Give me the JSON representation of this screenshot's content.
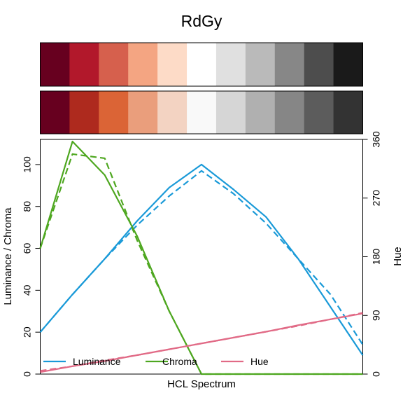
{
  "chart_data": {
    "type": "line",
    "title": "RdGy",
    "xlabel": "HCL Spectrum",
    "ylabel_left": "Luminance / Chroma",
    "ylabel_right": "Hue",
    "ylim_left": [
      0,
      112
    ],
    "ylim_right": [
      0,
      360
    ],
    "yticks_left": [
      "0",
      "20",
      "40",
      "60",
      "80",
      "100"
    ],
    "yticks_right": [
      "0",
      "90",
      "180",
      "270",
      "360"
    ],
    "x": [
      1,
      2,
      3,
      4,
      5,
      6,
      7,
      8,
      9,
      10,
      11
    ],
    "palette_top": [
      "#67001F",
      "#B2182B",
      "#D6604D",
      "#F4A582",
      "#FDDBC7",
      "#FFFFFF",
      "#E0E0E0",
      "#BABABA",
      "#878787",
      "#4D4D4D",
      "#1A1A1A"
    ],
    "palette_bottom": [
      "#67001F",
      "#AE2A1E",
      "#DB6436",
      "#EA9E7C",
      "#F3D3C2",
      "#F9F9F9",
      "#D6D6D6",
      "#B0B0B0",
      "#868686",
      "#5C5C5C",
      "#333333"
    ],
    "colors": {
      "luminance": "#1A9AD8",
      "chroma": "#4EA720",
      "hue": "#E16A86"
    },
    "legend": {
      "placement": "bottom",
      "items": [
        "Luminance",
        "Chroma",
        "Hue"
      ]
    },
    "series": [
      {
        "name": "Luminance",
        "axis": "left",
        "style": "solid",
        "values": [
          20,
          38,
          55,
          73,
          89,
          100,
          88,
          75,
          55,
          32,
          9
        ]
      },
      {
        "name": "Luminance",
        "axis": "left",
        "style": "dashed",
        "values": [
          20,
          38,
          55,
          71,
          85,
          97,
          86,
          72,
          55,
          38,
          14
        ]
      },
      {
        "name": "Chroma",
        "axis": "left",
        "style": "solid",
        "values": [
          60,
          111,
          95,
          66,
          30,
          0,
          0,
          0,
          0,
          0,
          0
        ]
      },
      {
        "name": "Chroma",
        "axis": "left",
        "style": "dashed",
        "values": [
          60,
          105,
          103,
          64,
          30,
          0,
          0,
          0,
          0,
          0,
          0
        ]
      },
      {
        "name": "Hue",
        "axis": "right",
        "style": "solid",
        "values": [
          3,
          12,
          20,
          29,
          38,
          47,
          56,
          65,
          75,
          84,
          93
        ]
      },
      {
        "name": "Hue",
        "axis": "right",
        "style": "dashed",
        "values": [
          5,
          12,
          21,
          29,
          38,
          47,
          56,
          65,
          74,
          84,
          94
        ]
      }
    ]
  }
}
